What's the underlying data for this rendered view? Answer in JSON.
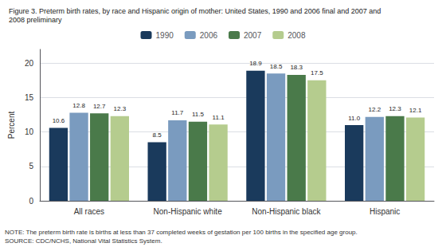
{
  "chart_data": {
    "type": "bar",
    "title": "Figure 3. Preterm birth rates, by race and Hispanic origin of mother: United States, 1990 and 2006 final and 2007 and",
    "subtitle": "2008 preliminary",
    "annotations": [
      "NOTE: The preterm birth rate is births at less than 37 completed weeks of gestation per 100 births in the specified age group.",
      "SOURCE: CDC/NCHS, National Vital Statistics System."
    ],
    "categories": [
      "All races",
      "Non-Hispanic white",
      "Non-Hispanic black",
      "Hispanic"
    ],
    "series": [
      {
        "name": "1990",
        "color": "#1a3a5c",
        "values": [
          10.6,
          8.5,
          18.9,
          11.0
        ],
        "value_labels": [
          "10.6",
          "8.5",
          "18.9",
          "11.0"
        ]
      },
      {
        "name": "2006",
        "color": "#7a9bbf",
        "values": [
          12.8,
          11.7,
          18.5,
          12.2
        ],
        "value_labels": [
          "12.8",
          "11.7",
          "18.5",
          "12.2"
        ]
      },
      {
        "name": "2007",
        "color": "#4a7a4a",
        "values": [
          12.7,
          11.5,
          18.3,
          12.3
        ],
        "value_labels": [
          "12.7",
          "11.5",
          "18.3",
          "12.3"
        ]
      },
      {
        "name": "2008",
        "color": "#b5cc8e",
        "values": [
          12.3,
          11.1,
          17.5,
          12.1
        ],
        "value_labels": [
          "12.3",
          "11.1",
          "17.5",
          "12.1"
        ]
      }
    ],
    "ylabel": "Percent",
    "ylim": [
      0,
      22
    ],
    "yticks": [
      0,
      5,
      10,
      15,
      20
    ],
    "grid": true,
    "legend": "top",
    "data_labels": true
  }
}
